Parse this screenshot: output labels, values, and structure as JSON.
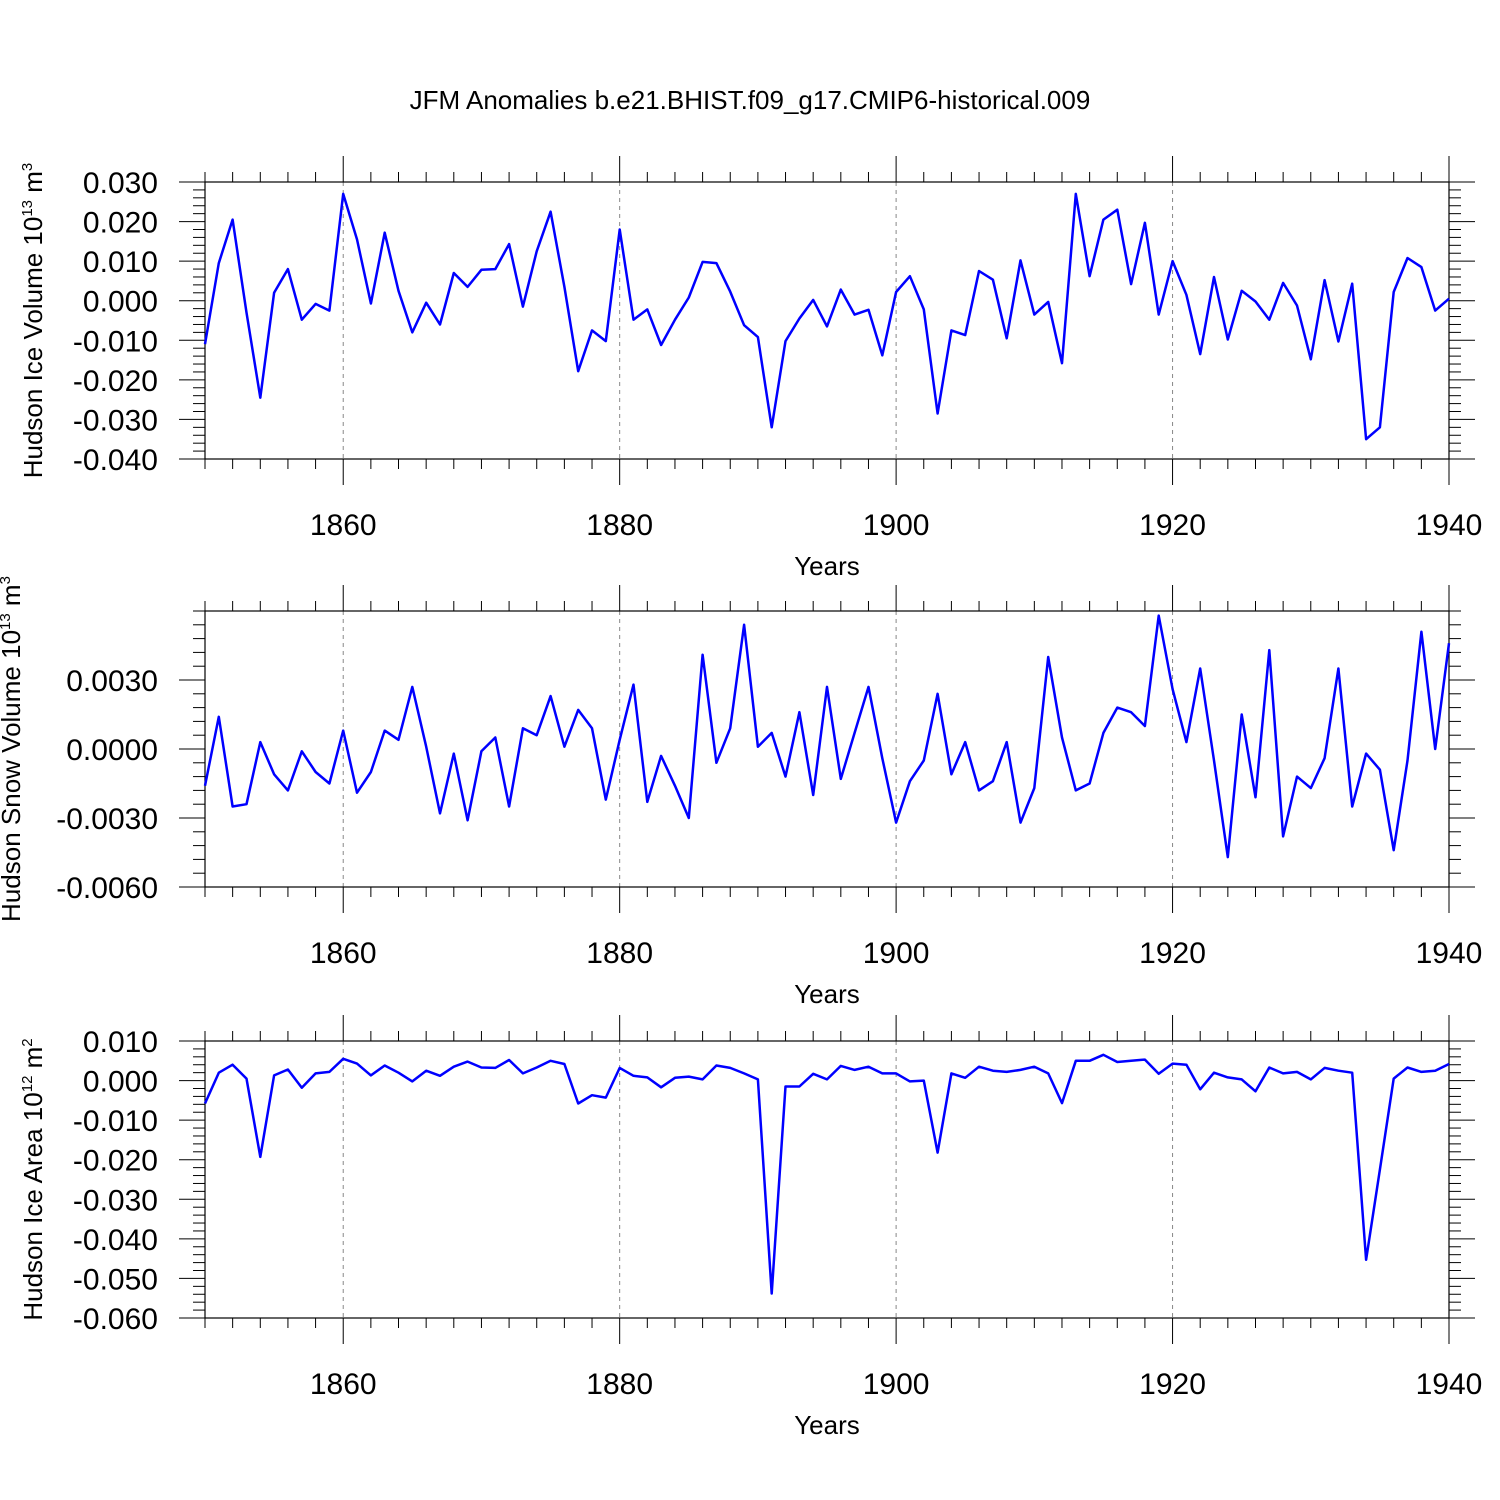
{
  "title": "JFM Anomalies b.e21.BHIST.f09_g17.CMIP6-historical.009",
  "colors": {
    "series": "#0000ff",
    "axis": "#000000",
    "grid": "#888888"
  },
  "chart_data": [
    {
      "type": "line",
      "title": "",
      "ylabel": "Hudson Ice Volume 10",
      "ylabel_exp": "13",
      "ylabel_unit": " m",
      "ylabel_unit_exp": "3",
      "xlabel": "Years",
      "xlim": [
        1850,
        1940
      ],
      "ylim": [
        -0.04,
        0.03
      ],
      "xticks": [
        1860,
        1880,
        1900,
        1920,
        1940
      ],
      "yticks": [
        -0.04,
        -0.03,
        -0.02,
        -0.01,
        0.0,
        0.01,
        0.02,
        0.03
      ],
      "ytick_labels": [
        "-0.040",
        "-0.030",
        "-0.020",
        "-0.010",
        "0.000",
        "0.010",
        "0.020",
        "0.030"
      ],
      "grid": "vertical dashed at major x ticks",
      "x_start": 1850,
      "series": [
        {
          "values": [
            -0.011,
            0.0095,
            0.0205,
            -0.003,
            -0.0245,
            0.002,
            0.008,
            -0.0048,
            -0.0008,
            -0.0025,
            0.027,
            0.0155,
            -0.0007,
            0.0172,
            0.0025,
            -0.008,
            -0.0005,
            -0.006,
            0.007,
            0.0035,
            0.0078,
            0.008,
            0.0143,
            -0.0015,
            0.0125,
            0.0225,
            0.0035,
            -0.0178,
            -0.0075,
            -0.0102,
            0.018,
            -0.0048,
            -0.0022,
            -0.0112,
            -0.0048,
            0.0008,
            0.0098,
            0.0095,
            0.0023,
            -0.0062,
            -0.0092,
            -0.032,
            -0.0102,
            -0.0045,
            0.0002,
            -0.0065,
            0.0028,
            -0.0035,
            -0.0023,
            -0.0138,
            0.0022,
            0.0062,
            -0.0022,
            -0.0285,
            -0.0075,
            -0.0087,
            0.0075,
            0.0053,
            -0.0095,
            0.0102,
            -0.0035,
            -0.0003,
            -0.0158,
            0.027,
            0.0062,
            0.0205,
            0.023,
            0.0042,
            0.0197,
            -0.0035,
            0.01,
            0.0015,
            -0.0135,
            0.006,
            -0.0098,
            0.0025,
            -0.0002,
            -0.0048,
            0.0045,
            -0.0012,
            -0.0148,
            0.0052,
            -0.0103,
            0.0043,
            -0.035,
            -0.032,
            0.0022,
            0.0108,
            0.0085,
            -0.0025,
            0.0005
          ]
        }
      ]
    },
    {
      "type": "line",
      "title": "",
      "ylabel": "Hudson Snow Volume 10",
      "ylabel_exp": "13",
      "ylabel_unit": " m",
      "ylabel_unit_exp": "3",
      "xlabel": "Years",
      "xlim": [
        1850,
        1940
      ],
      "ylim": [
        -0.006,
        0.006
      ],
      "xticks": [
        1860,
        1880,
        1900,
        1920,
        1940
      ],
      "yticks": [
        -0.006,
        -0.003,
        0.0,
        0.003
      ],
      "ytick_labels": [
        "-0.0060",
        "-0.0030",
        "0.0000",
        "0.0030"
      ],
      "grid": "vertical dashed at major x ticks",
      "x_start": 1850,
      "series": [
        {
          "values": [
            -0.0016,
            0.0014,
            -0.0025,
            -0.0024,
            0.0003,
            -0.0011,
            -0.0018,
            -0.0001,
            -0.001,
            -0.0015,
            0.0008,
            -0.0019,
            -0.001,
            0.0008,
            0.0004,
            0.0027,
            0.0001,
            -0.0028,
            -0.0002,
            -0.0031,
            -0.0001,
            0.0005,
            -0.0025,
            0.0009,
            0.0006,
            0.0023,
            0.0001,
            0.0017,
            0.0009,
            -0.0022,
            0.0004,
            0.0028,
            -0.0023,
            -0.0003,
            -0.0016,
            -0.003,
            0.0041,
            -0.0006,
            0.0009,
            0.0054,
            0.0001,
            0.0007,
            -0.0012,
            0.0016,
            -0.002,
            0.0027,
            -0.0013,
            0.0007,
            0.0027,
            -0.0004,
            -0.0032,
            -0.0014,
            -0.0005,
            0.0024,
            -0.0011,
            0.0003,
            -0.0018,
            -0.0014,
            0.0003,
            -0.0032,
            -0.0017,
            0.004,
            0.0005,
            -0.0018,
            -0.0015,
            0.0007,
            0.0018,
            0.0016,
            0.001,
            0.0058,
            0.0026,
            0.0003,
            0.0035,
            -0.0005,
            -0.0047,
            0.0015,
            -0.0021,
            0.0043,
            -0.0038,
            -0.0012,
            -0.0017,
            -0.0004,
            0.0035,
            -0.0025,
            -0.0002,
            -0.0009,
            -0.0044,
            -0.0005,
            0.0051,
            0.0,
            0.0046
          ]
        }
      ]
    },
    {
      "type": "line",
      "title": "",
      "ylabel": "Hudson Ice Area 10",
      "ylabel_exp": "12",
      "ylabel_unit": " m",
      "ylabel_unit_exp": "2",
      "xlabel": "Years",
      "xlim": [
        1850,
        1940
      ],
      "ylim": [
        -0.06,
        0.01
      ],
      "xticks": [
        1860,
        1880,
        1900,
        1920,
        1940
      ],
      "yticks": [
        -0.06,
        -0.05,
        -0.04,
        -0.03,
        -0.02,
        -0.01,
        0.0,
        0.01
      ],
      "ytick_labels": [
        "-0.060",
        "-0.050",
        "-0.040",
        "-0.030",
        "-0.020",
        "-0.010",
        "0.000",
        "0.010"
      ],
      "grid": "vertical dashed at major x ticks",
      "x_start": 1850,
      "series": [
        {
          "values": [
            -0.0058,
            0.002,
            0.004,
            0.0005,
            -0.0193,
            0.0013,
            0.0028,
            -0.0018,
            0.0018,
            0.0022,
            0.0055,
            0.0043,
            0.0013,
            0.0038,
            0.002,
            -0.0002,
            0.0025,
            0.0012,
            0.0035,
            0.0048,
            0.0033,
            0.0032,
            0.0052,
            0.0018,
            0.0033,
            0.005,
            0.0042,
            -0.0058,
            -0.0037,
            -0.0043,
            0.0032,
            0.0012,
            0.0008,
            -0.0017,
            0.0007,
            0.001,
            0.0003,
            0.0038,
            0.0032,
            0.0018,
            0.0003,
            -0.0538,
            -0.0015,
            -0.0015,
            0.0017,
            0.0003,
            0.0037,
            0.0027,
            0.0035,
            0.0018,
            0.0018,
            -0.0002,
            0.0,
            -0.0182,
            0.0018,
            0.0007,
            0.0035,
            0.0025,
            0.0022,
            0.0027,
            0.0035,
            0.0018,
            -0.0057,
            0.005,
            0.005,
            0.0065,
            0.0047,
            0.005,
            0.0053,
            0.0017,
            0.0043,
            0.004,
            -0.0022,
            0.002,
            0.0008,
            0.0003,
            -0.0027,
            0.0033,
            0.0018,
            0.0022,
            0.0003,
            0.0032,
            0.0025,
            0.002,
            -0.0453,
            -0.0225,
            0.0005,
            0.0033,
            0.0022,
            0.0025,
            0.0042
          ]
        }
      ]
    }
  ]
}
